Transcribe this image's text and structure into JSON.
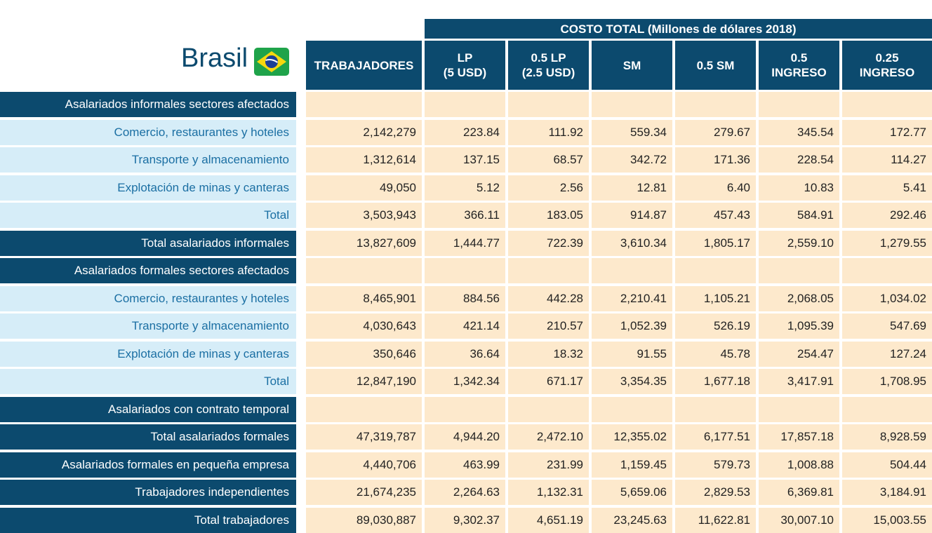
{
  "header": {
    "title": "Brasil",
    "group_header": "COSTO TOTAL (Millones de dólares 2018)",
    "columns": [
      [
        "TRABAJADORES"
      ],
      [
        "LP",
        "(5 USD)"
      ],
      [
        "0.5 LP",
        "(2.5 USD)"
      ],
      [
        "SM"
      ],
      [
        "0.5 SM"
      ],
      [
        "0.5",
        "INGRESO"
      ],
      [
        "0.25",
        "INGRESO"
      ]
    ]
  },
  "table": {
    "rows": [
      {
        "label": "Asalariados informales sectores afectados",
        "style": "dark"
      },
      {
        "label": "Comercio, restaurantes y hoteles",
        "style": "light",
        "values": [
          "2,142,279",
          "223.84",
          "111.92",
          "559.34",
          "279.67",
          "345.54",
          "172.77"
        ]
      },
      {
        "label": "Transporte y almacenamiento",
        "style": "light",
        "values": [
          "1,312,614",
          "137.15",
          "68.57",
          "342.72",
          "171.36",
          "228.54",
          "114.27"
        ]
      },
      {
        "label": "Explotación de minas y canteras",
        "style": "light",
        "values": [
          "49,050",
          "5.12",
          "2.56",
          "12.81",
          "6.40",
          "10.83",
          "5.41"
        ]
      },
      {
        "label": "Total",
        "style": "light",
        "values": [
          "3,503,943",
          "366.11",
          "183.05",
          "914.87",
          "457.43",
          "584.91",
          "292.46"
        ]
      },
      {
        "label": "Total asalariados informales",
        "style": "dark",
        "values": [
          "13,827,609",
          "1,444.77",
          "722.39",
          "3,610.34",
          "1,805.17",
          "2,559.10",
          "1,279.55"
        ]
      },
      {
        "label": "Asalariados formales sectores afectados",
        "style": "dark"
      },
      {
        "label": "Comercio, restaurantes y hoteles",
        "style": "light",
        "values": [
          "8,465,901",
          "884.56",
          "442.28",
          "2,210.41",
          "1,105.21",
          "2,068.05",
          "1,034.02"
        ]
      },
      {
        "label": "Transporte y almacenamiento",
        "style": "light",
        "values": [
          "4,030,643",
          "421.14",
          "210.57",
          "1,052.39",
          "526.19",
          "1,095.39",
          "547.69"
        ]
      },
      {
        "label": "Explotación de minas y canteras",
        "style": "light",
        "values": [
          "350,646",
          "36.64",
          "18.32",
          "91.55",
          "45.78",
          "254.47",
          "127.24"
        ]
      },
      {
        "label": "Total",
        "style": "light",
        "values": [
          "12,847,190",
          "1,342.34",
          "671.17",
          "3,354.35",
          "1,677.18",
          "3,417.91",
          "1,708.95"
        ]
      },
      {
        "label": "Asalariados con contrato temporal",
        "style": "dark"
      },
      {
        "label": "Total asalariados formales",
        "style": "dark",
        "values": [
          "47,319,787",
          "4,944.20",
          "2,472.10",
          "12,355.02",
          "6,177.51",
          "17,857.18",
          "8,928.59"
        ]
      },
      {
        "label": "Asalariados formales en pequeña empresa",
        "style": "dark",
        "values": [
          "4,440,706",
          "463.99",
          "231.99",
          "1,159.45",
          "579.73",
          "1,008.88",
          "504.44"
        ]
      },
      {
        "label": "Trabajadores independientes",
        "style": "dark",
        "values": [
          "21,674,235",
          "2,264.63",
          "1,132.31",
          "5,659.06",
          "2,829.53",
          "6,369.81",
          "3,184.91"
        ]
      },
      {
        "label": "Total trabajadores",
        "style": "dark",
        "values": [
          "89,030,887",
          "9,302.37",
          "4,651.19",
          "23,245.63",
          "11,622.81",
          "30,007.10",
          "15,003.55"
        ]
      }
    ]
  }
}
